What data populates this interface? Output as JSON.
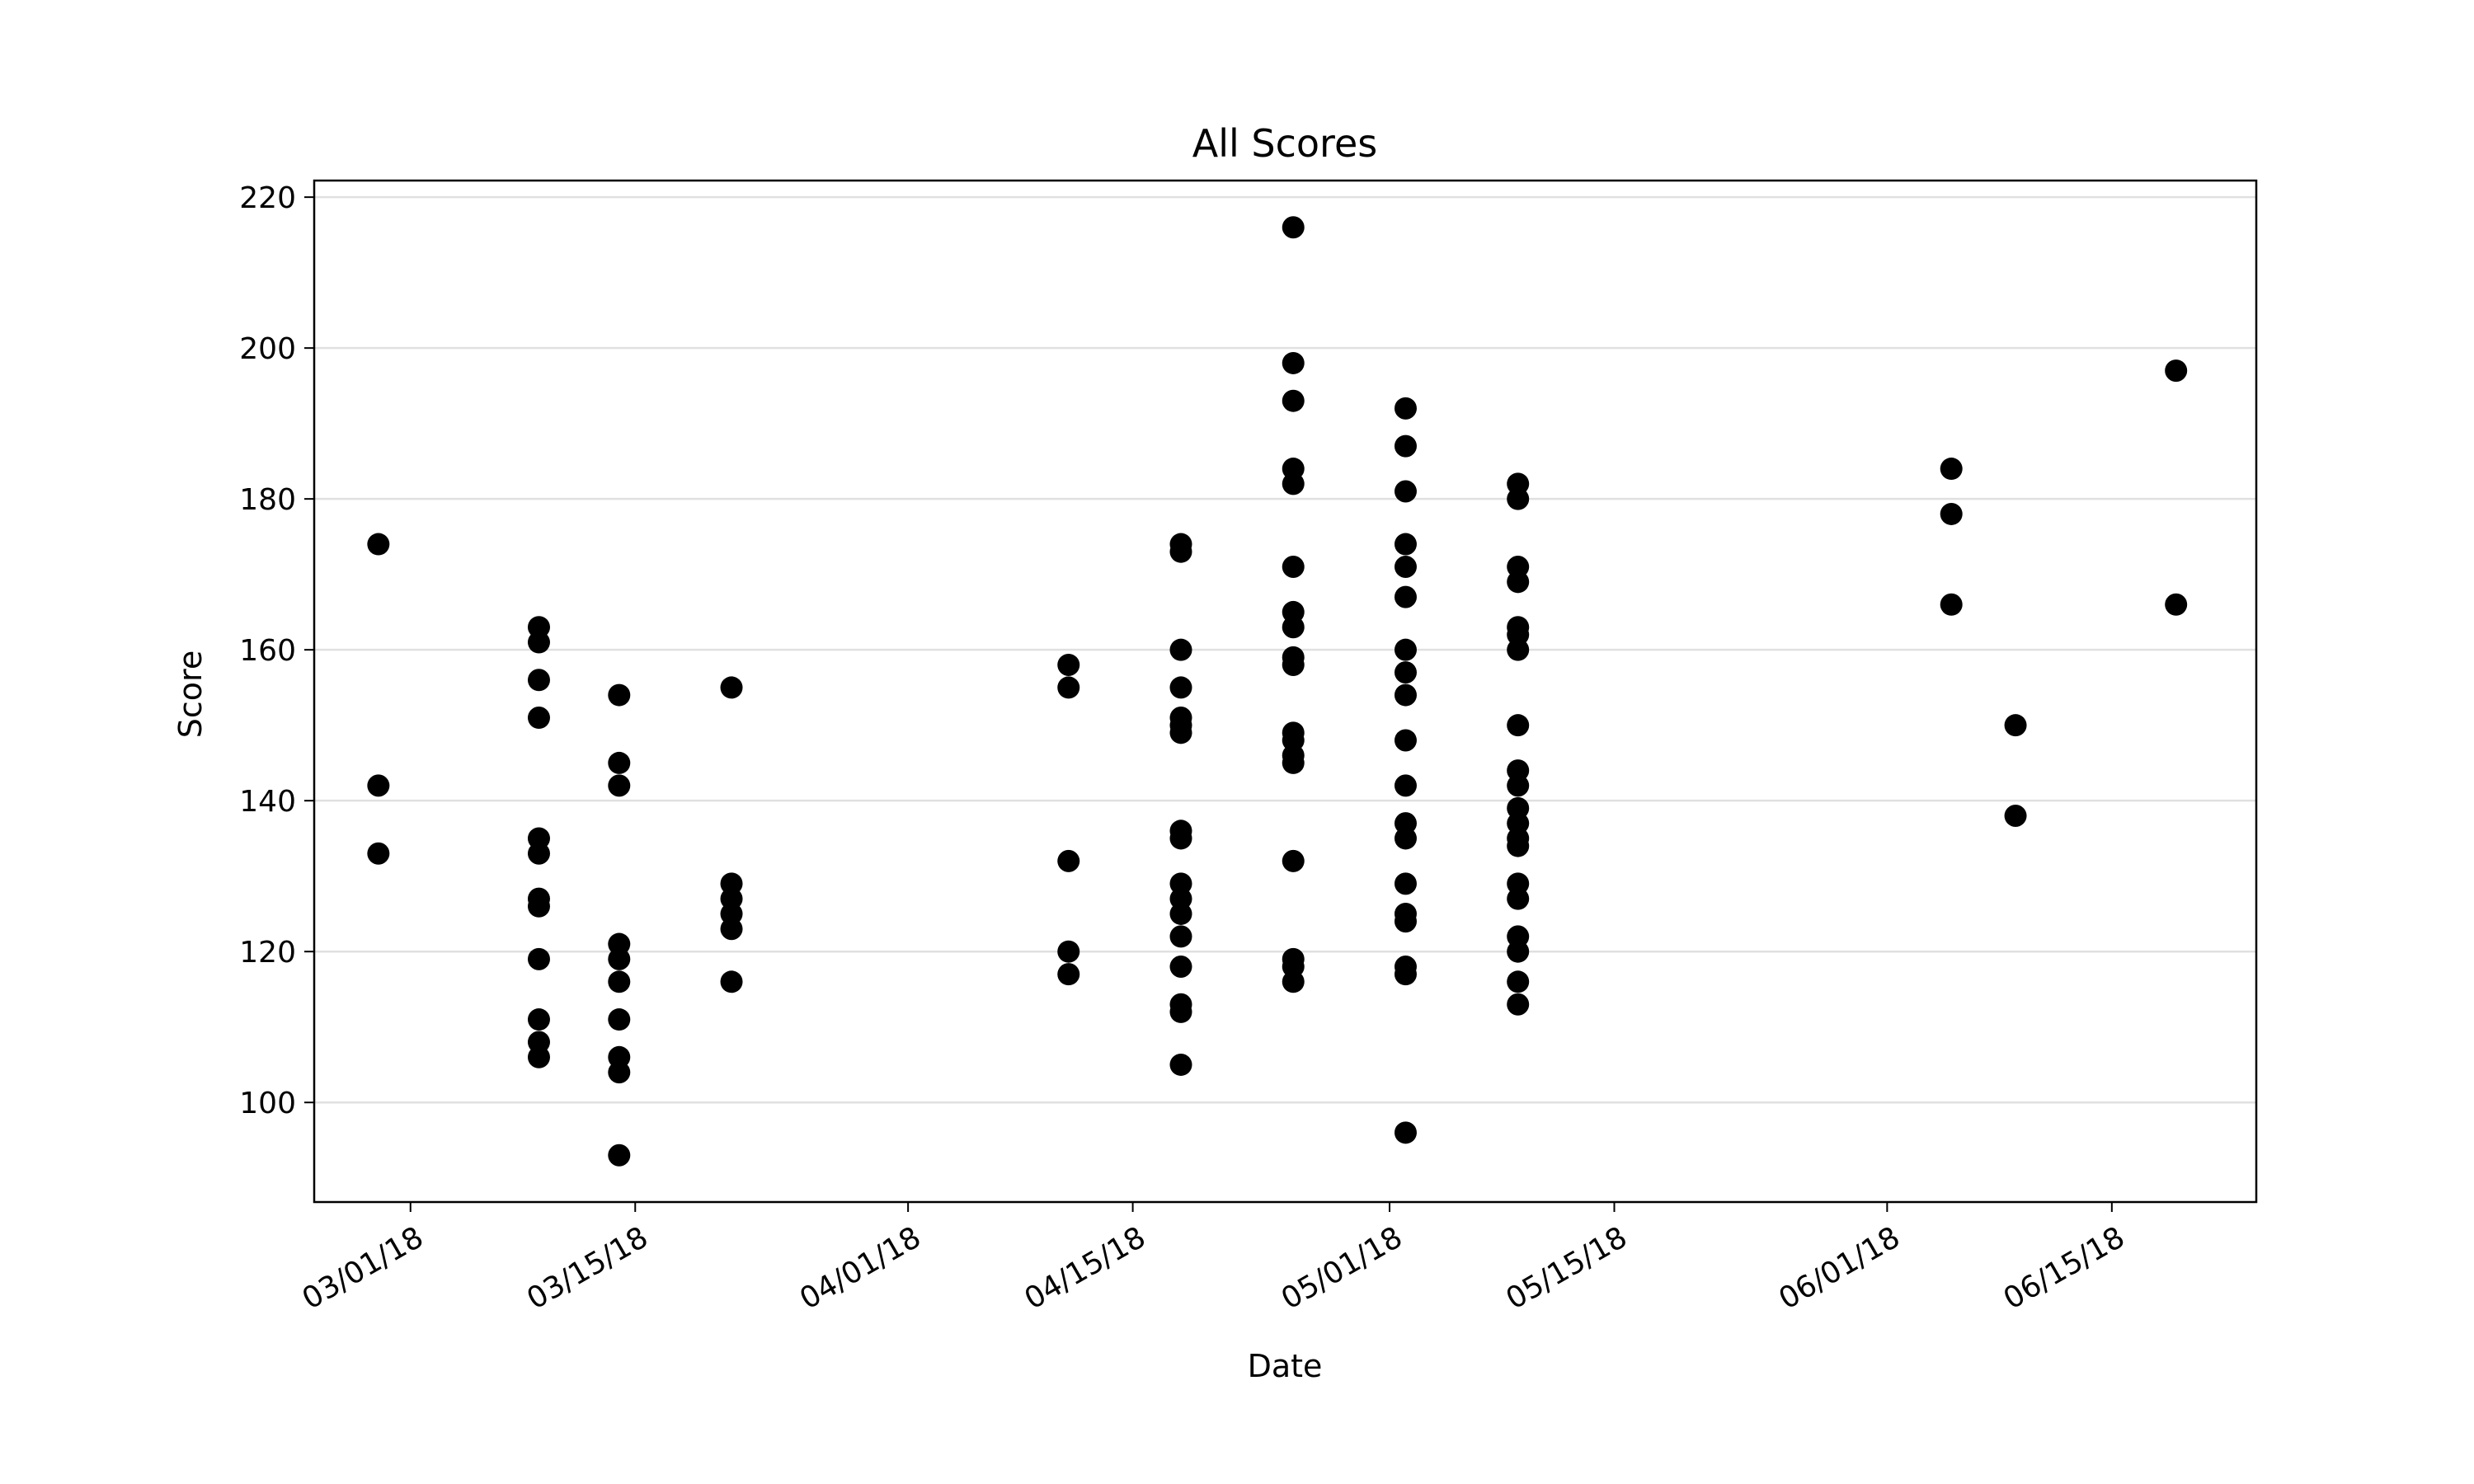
{
  "chart_data": {
    "type": "scatter",
    "title": "All Scores",
    "xlabel": "Date",
    "ylabel": "Score",
    "xlim": [
      "2018-02-23",
      "2018-06-24"
    ],
    "ylim": [
      86.8,
      222.2
    ],
    "x_ticks": [
      "2018-03-01",
      "2018-03-15",
      "2018-04-01",
      "2018-04-15",
      "2018-05-01",
      "2018-05-15",
      "2018-06-01",
      "2018-06-15"
    ],
    "x_tick_labels": [
      "03/01/18",
      "03/15/18",
      "04/01/18",
      "04/15/18",
      "05/01/18",
      "05/15/18",
      "06/01/18",
      "06/15/18"
    ],
    "y_ticks": [
      100,
      120,
      140,
      160,
      180,
      200,
      220
    ],
    "grid": "horizontal",
    "marker_color": "#000000",
    "points": [
      {
        "x": "2018-02-27",
        "y": 174
      },
      {
        "x": "2018-02-27",
        "y": 142
      },
      {
        "x": "2018-02-27",
        "y": 133
      },
      {
        "x": "2018-03-09",
        "y": 163
      },
      {
        "x": "2018-03-09",
        "y": 161
      },
      {
        "x": "2018-03-09",
        "y": 156
      },
      {
        "x": "2018-03-09",
        "y": 151
      },
      {
        "x": "2018-03-09",
        "y": 135
      },
      {
        "x": "2018-03-09",
        "y": 133
      },
      {
        "x": "2018-03-09",
        "y": 127
      },
      {
        "x": "2018-03-09",
        "y": 126
      },
      {
        "x": "2018-03-09",
        "y": 119
      },
      {
        "x": "2018-03-09",
        "y": 111
      },
      {
        "x": "2018-03-09",
        "y": 108
      },
      {
        "x": "2018-03-09",
        "y": 106
      },
      {
        "x": "2018-03-14",
        "y": 154
      },
      {
        "x": "2018-03-14",
        "y": 145
      },
      {
        "x": "2018-03-14",
        "y": 142
      },
      {
        "x": "2018-03-14",
        "y": 121
      },
      {
        "x": "2018-03-14",
        "y": 119
      },
      {
        "x": "2018-03-14",
        "y": 116
      },
      {
        "x": "2018-03-14",
        "y": 111
      },
      {
        "x": "2018-03-14",
        "y": 106
      },
      {
        "x": "2018-03-14",
        "y": 104
      },
      {
        "x": "2018-03-14",
        "y": 93
      },
      {
        "x": "2018-03-21",
        "y": 155
      },
      {
        "x": "2018-03-21",
        "y": 129
      },
      {
        "x": "2018-03-21",
        "y": 127
      },
      {
        "x": "2018-03-21",
        "y": 125
      },
      {
        "x": "2018-03-21",
        "y": 123
      },
      {
        "x": "2018-03-21",
        "y": 116
      },
      {
        "x": "2018-04-11",
        "y": 158
      },
      {
        "x": "2018-04-11",
        "y": 155
      },
      {
        "x": "2018-04-11",
        "y": 132
      },
      {
        "x": "2018-04-11",
        "y": 120
      },
      {
        "x": "2018-04-11",
        "y": 117
      },
      {
        "x": "2018-04-18",
        "y": 174
      },
      {
        "x": "2018-04-18",
        "y": 173
      },
      {
        "x": "2018-04-18",
        "y": 160
      },
      {
        "x": "2018-04-18",
        "y": 155
      },
      {
        "x": "2018-04-18",
        "y": 151
      },
      {
        "x": "2018-04-18",
        "y": 150
      },
      {
        "x": "2018-04-18",
        "y": 149
      },
      {
        "x": "2018-04-18",
        "y": 136
      },
      {
        "x": "2018-04-18",
        "y": 135
      },
      {
        "x": "2018-04-18",
        "y": 129
      },
      {
        "x": "2018-04-18",
        "y": 127
      },
      {
        "x": "2018-04-18",
        "y": 125
      },
      {
        "x": "2018-04-18",
        "y": 122
      },
      {
        "x": "2018-04-18",
        "y": 118
      },
      {
        "x": "2018-04-18",
        "y": 113
      },
      {
        "x": "2018-04-18",
        "y": 112
      },
      {
        "x": "2018-04-18",
        "y": 105
      },
      {
        "x": "2018-04-25",
        "y": 216
      },
      {
        "x": "2018-04-25",
        "y": 198
      },
      {
        "x": "2018-04-25",
        "y": 193
      },
      {
        "x": "2018-04-25",
        "y": 184
      },
      {
        "x": "2018-04-25",
        "y": 182
      },
      {
        "x": "2018-04-25",
        "y": 171
      },
      {
        "x": "2018-04-25",
        "y": 165
      },
      {
        "x": "2018-04-25",
        "y": 163
      },
      {
        "x": "2018-04-25",
        "y": 159
      },
      {
        "x": "2018-04-25",
        "y": 158
      },
      {
        "x": "2018-04-25",
        "y": 149
      },
      {
        "x": "2018-04-25",
        "y": 148
      },
      {
        "x": "2018-04-25",
        "y": 146
      },
      {
        "x": "2018-04-25",
        "y": 145
      },
      {
        "x": "2018-04-25",
        "y": 132
      },
      {
        "x": "2018-04-25",
        "y": 119
      },
      {
        "x": "2018-04-25",
        "y": 118
      },
      {
        "x": "2018-04-25",
        "y": 116
      },
      {
        "x": "2018-05-02",
        "y": 192
      },
      {
        "x": "2018-05-02",
        "y": 187
      },
      {
        "x": "2018-05-02",
        "y": 181
      },
      {
        "x": "2018-05-02",
        "y": 174
      },
      {
        "x": "2018-05-02",
        "y": 171
      },
      {
        "x": "2018-05-02",
        "y": 167
      },
      {
        "x": "2018-05-02",
        "y": 160
      },
      {
        "x": "2018-05-02",
        "y": 157
      },
      {
        "x": "2018-05-02",
        "y": 154
      },
      {
        "x": "2018-05-02",
        "y": 148
      },
      {
        "x": "2018-05-02",
        "y": 142
      },
      {
        "x": "2018-05-02",
        "y": 137
      },
      {
        "x": "2018-05-02",
        "y": 135
      },
      {
        "x": "2018-05-02",
        "y": 129
      },
      {
        "x": "2018-05-02",
        "y": 125
      },
      {
        "x": "2018-05-02",
        "y": 124
      },
      {
        "x": "2018-05-02",
        "y": 118
      },
      {
        "x": "2018-05-02",
        "y": 117
      },
      {
        "x": "2018-05-02",
        "y": 96
      },
      {
        "x": "2018-05-09",
        "y": 182
      },
      {
        "x": "2018-05-09",
        "y": 180
      },
      {
        "x": "2018-05-09",
        "y": 171
      },
      {
        "x": "2018-05-09",
        "y": 169
      },
      {
        "x": "2018-05-09",
        "y": 163
      },
      {
        "x": "2018-05-09",
        "y": 162
      },
      {
        "x": "2018-05-09",
        "y": 160
      },
      {
        "x": "2018-05-09",
        "y": 150
      },
      {
        "x": "2018-05-09",
        "y": 144
      },
      {
        "x": "2018-05-09",
        "y": 142
      },
      {
        "x": "2018-05-09",
        "y": 139
      },
      {
        "x": "2018-05-09",
        "y": 137
      },
      {
        "x": "2018-05-09",
        "y": 135
      },
      {
        "x": "2018-05-09",
        "y": 134
      },
      {
        "x": "2018-05-09",
        "y": 129
      },
      {
        "x": "2018-05-09",
        "y": 127
      },
      {
        "x": "2018-05-09",
        "y": 122
      },
      {
        "x": "2018-05-09",
        "y": 120
      },
      {
        "x": "2018-05-09",
        "y": 116
      },
      {
        "x": "2018-05-09",
        "y": 113
      },
      {
        "x": "2018-06-05",
        "y": 184
      },
      {
        "x": "2018-06-05",
        "y": 178
      },
      {
        "x": "2018-06-05",
        "y": 166
      },
      {
        "x": "2018-06-09",
        "y": 150
      },
      {
        "x": "2018-06-09",
        "y": 138
      },
      {
        "x": "2018-06-19",
        "y": 197
      },
      {
        "x": "2018-06-19",
        "y": 166
      }
    ]
  }
}
